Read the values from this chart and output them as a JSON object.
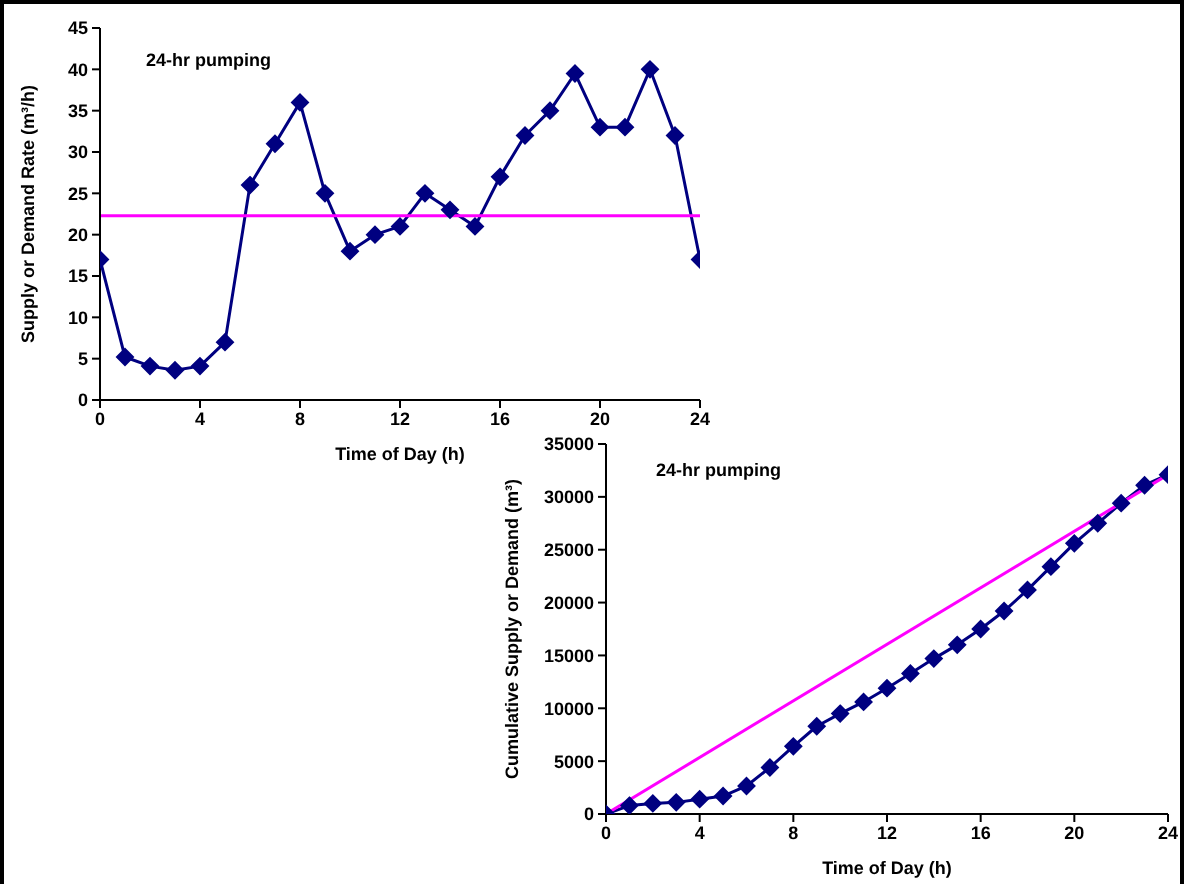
{
  "chart_data": [
    {
      "type": "line",
      "title": "24-hr pumping",
      "xlabel": "Time of Day (h)",
      "ylabel": "Supply or Demand Rate (m³/h)",
      "xlim": [
        0,
        24
      ],
      "xticks": [
        0,
        4,
        8,
        12,
        16,
        20,
        24
      ],
      "ylim": [
        0,
        45
      ],
      "yticks": [
        0,
        5,
        10,
        15,
        20,
        25,
        30,
        35,
        40,
        45
      ],
      "grid": false,
      "legend": false,
      "line_style": "solid",
      "series": [
        {
          "color": "#000080",
          "marker": "diamond",
          "x": [
            0,
            1,
            2,
            3,
            4,
            5,
            6,
            7,
            8,
            9,
            10,
            11,
            12,
            13,
            14,
            15,
            16,
            17,
            18,
            19,
            20,
            21,
            22,
            23,
            24
          ],
          "values": [
            17,
            5.2,
            4.1,
            3.6,
            4.1,
            7,
            26,
            31,
            36,
            25,
            18,
            20,
            21,
            25,
            23,
            21,
            27,
            32,
            35,
            39.5,
            33,
            33,
            40,
            32,
            17
          ]
        },
        {
          "color": "#ff00ff",
          "marker": "none",
          "x": [
            0,
            24
          ],
          "values": [
            22.3,
            22.3
          ]
        }
      ]
    },
    {
      "type": "line",
      "title": "24-hr pumping",
      "xlabel": "Time of Day (h)",
      "ylabel": "Cumulative Supply or Demand (m³)",
      "xlim": [
        0,
        24
      ],
      "xticks": [
        0,
        4,
        8,
        12,
        16,
        20,
        24
      ],
      "ylim": [
        0,
        35000
      ],
      "yticks": [
        0,
        5000,
        10000,
        15000,
        20000,
        25000,
        30000,
        35000
      ],
      "grid": false,
      "legend": false,
      "line_style": "solid",
      "series": [
        {
          "color": "#000080",
          "marker": "diamond",
          "x": [
            0,
            1,
            2,
            3,
            4,
            5,
            6,
            7,
            8,
            9,
            10,
            11,
            12,
            13,
            14,
            15,
            16,
            17,
            18,
            19,
            20,
            21,
            22,
            23,
            24
          ],
          "values": [
            0,
            800,
            1000,
            1100,
            1400,
            1700,
            2650,
            4400,
            6400,
            8300,
            9500,
            10600,
            11900,
            13300,
            14700,
            16000,
            17500,
            19200,
            21200,
            23400,
            25600,
            27500,
            29400,
            31100,
            32100
          ]
        },
        {
          "color": "#ff00ff",
          "marker": "none",
          "x": [
            0,
            24
          ],
          "values": [
            0,
            32100
          ]
        }
      ]
    }
  ]
}
